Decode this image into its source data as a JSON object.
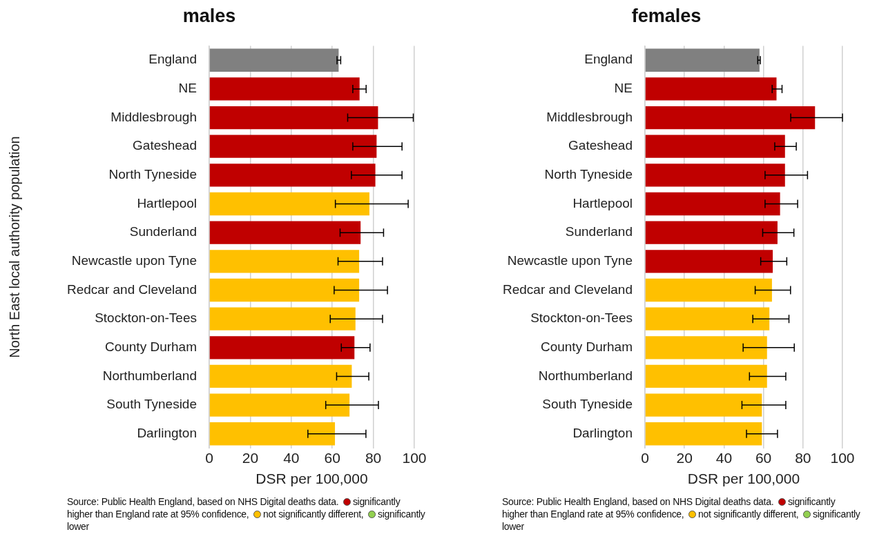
{
  "chart_data": [
    {
      "type": "bar",
      "orientation": "horizontal",
      "title": "males",
      "xlabel": "DSR per 100,000",
      "ylabel": "North East local authority population",
      "categories": [
        "England",
        "NE",
        "Middlesbrough",
        "Gateshead",
        "North Tyneside",
        "Hartlepool",
        "Sunderland",
        "Newcastle upon Tyne",
        "Redcar and Cleveland",
        "Stockton-on-Tees",
        "County Durham",
        "Northumberland",
        "South Tyneside",
        "Darlington"
      ],
      "values": [
        63.1,
        73.3,
        82.3,
        81.6,
        81.0,
        78.1,
        73.8,
        73.1,
        73.1,
        71.3,
        70.8,
        69.5,
        68.4,
        61.3
      ],
      "colors": [
        "#808080",
        "#c00000",
        "#c00000",
        "#c00000",
        "#c00000",
        "#ffc000",
        "#c00000",
        "#ffc000",
        "#ffc000",
        "#ffc000",
        "#c00000",
        "#ffc000",
        "#ffc000",
        "#ffc000"
      ],
      "errors": [
        [
          62.3,
          64.1
        ],
        [
          70.0,
          76.5
        ],
        [
          67.5,
          99.5
        ],
        [
          70.0,
          94.0
        ],
        [
          69.3,
          94.0
        ],
        [
          61.5,
          97.0
        ],
        [
          63.8,
          85.0
        ],
        [
          62.8,
          84.5
        ],
        [
          60.9,
          86.9
        ],
        [
          59.0,
          84.5
        ],
        [
          64.4,
          78.4
        ],
        [
          62.1,
          77.8
        ],
        [
          56.8,
          82.5
        ],
        [
          48.1,
          76.4
        ]
      ],
      "xlim": [
        0,
        100
      ],
      "xticks": [
        0,
        20,
        40,
        60,
        80,
        100
      ],
      "grid": "x",
      "legend": false,
      "annotations": [
        "Source: Public Health England, based on NHS Digital deaths data.",
        "significantly higher than England rate at 95% confidence,",
        "not significantly different,",
        "significantly lower"
      ]
    },
    {
      "type": "bar",
      "orientation": "horizontal",
      "title": "females",
      "xlabel": "DSR per 100,000",
      "categories": [
        "England",
        "NE",
        "Middlesbrough",
        "Gateshead",
        "North Tyneside",
        "Hartlepool",
        "Sunderland",
        "Newcastle upon Tyne",
        "Redcar and Cleveland",
        "Stockton-on-Tees",
        "County Durham",
        "Northumberland",
        "South Tyneside",
        "Darlington"
      ],
      "values": [
        58.0,
        66.6,
        86.1,
        70.9,
        70.9,
        68.4,
        67.1,
        64.7,
        64.3,
        63.0,
        61.8,
        61.8,
        59.2,
        59.2
      ],
      "colors": [
        "#808080",
        "#c00000",
        "#c00000",
        "#c00000",
        "#c00000",
        "#c00000",
        "#c00000",
        "#c00000",
        "#ffc000",
        "#ffc000",
        "#ffc000",
        "#ffc000",
        "#ffc000",
        "#ffc000"
      ],
      "errors": [
        [
          57.1,
          58.4
        ],
        [
          64.4,
          69.4
        ],
        [
          73.8,
          100.0
        ],
        [
          65.7,
          76.6
        ],
        [
          60.8,
          82.3
        ],
        [
          60.8,
          77.3
        ],
        [
          59.6,
          75.4
        ],
        [
          58.6,
          71.8
        ],
        [
          55.8,
          73.7
        ],
        [
          54.6,
          72.9
        ],
        [
          49.7,
          75.6
        ],
        [
          52.9,
          71.3
        ],
        [
          49.1,
          71.3
        ],
        [
          51.4,
          67.1
        ]
      ],
      "xlim": [
        0,
        100
      ],
      "xticks": [
        0,
        20,
        40,
        60,
        80,
        100
      ],
      "grid": "x",
      "legend": false,
      "annotations": [
        "Source: Public Health England, based on NHS Digital deaths data.",
        "significantly higher than England rate at 95% confidence,",
        "not significantly different,",
        "significantly lower"
      ]
    }
  ]
}
